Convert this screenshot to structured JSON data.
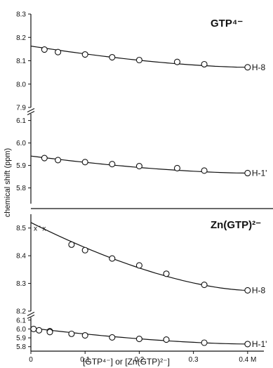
{
  "chart_data": [
    {
      "type": "scatter",
      "title": "GTP⁴⁻",
      "xlim": [
        0,
        0.43
      ],
      "broken_y_axis": true,
      "ylabel": "chemical shift (ppm)",
      "upper": {
        "ylim": [
          7.9,
          8.3
        ],
        "yticks": [
          "7.9",
          "8.0",
          "8.1",
          "8.2",
          "8.3"
        ],
        "series": [
          {
            "name": "H-8",
            "x": [
              0.025,
              0.05,
              0.1,
              0.15,
              0.2,
              0.27,
              0.32,
              0.4
            ],
            "y": [
              8.148,
              8.137,
              8.127,
              8.115,
              8.103,
              8.095,
              8.085,
              8.072
            ],
            "fit_start": 8.163,
            "fit_end": 8.072
          }
        ]
      },
      "lower": {
        "ylim": [
          5.73,
          6.13
        ],
        "yticks": [
          "5.8",
          "5.9",
          "6.0",
          "6.1"
        ],
        "series": [
          {
            "name": "H-1'",
            "x": [
              0.025,
              0.05,
              0.1,
              0.15,
              0.2,
              0.27,
              0.32,
              0.4
            ],
            "y": [
              5.933,
              5.924,
              5.915,
              5.906,
              5.897,
              5.888,
              5.877,
              5.866
            ],
            "fit_start": 5.942,
            "fit_end": 5.866
          }
        ]
      }
    },
    {
      "type": "scatter",
      "title": "Zn(GTP)²⁻",
      "xlim": [
        0,
        0.43
      ],
      "broken_y_axis": true,
      "ylabel": "chemical shift (ppm)",
      "xticks": [
        "0",
        "0.1",
        "0.2",
        "0.3",
        "0.4 M"
      ],
      "xtick_values": [
        0,
        0.1,
        0.2,
        0.3,
        0.4
      ],
      "xlabel": "[GTP⁴⁻] or [Zn(GTP)²⁻]",
      "upper": {
        "ylim": [
          8.2,
          8.55
        ],
        "yticks": [
          "8.2",
          "8.3",
          "8.4",
          "8.5"
        ],
        "annotation": "x ’ x",
        "series": [
          {
            "name": "H-8",
            "x": [
              0.075,
              0.1,
              0.15,
              0.2,
              0.25,
              0.32,
              0.4
            ],
            "y": [
              8.44,
              8.42,
              8.39,
              8.365,
              8.335,
              8.295,
              8.275
            ],
            "fit_start": 8.52,
            "fit_end": 8.275
          }
        ]
      },
      "lower": {
        "ylim": [
          5.75,
          6.13
        ],
        "yticks": [
          "5.8",
          "5.9",
          "6.0",
          "6.1"
        ],
        "series": [
          {
            "name": "H-1'",
            "x": [
              0.005,
              0.015,
              0.035,
              0.035,
              0.075,
              0.1,
              0.15,
              0.2,
              0.25,
              0.32,
              0.4
            ],
            "y": [
              6.0,
              5.985,
              5.975,
              5.965,
              5.945,
              5.928,
              5.905,
              5.888,
              5.88,
              5.845,
              5.83
            ],
            "fit_start": 6.01,
            "fit_end": 5.83
          }
        ]
      }
    }
  ]
}
